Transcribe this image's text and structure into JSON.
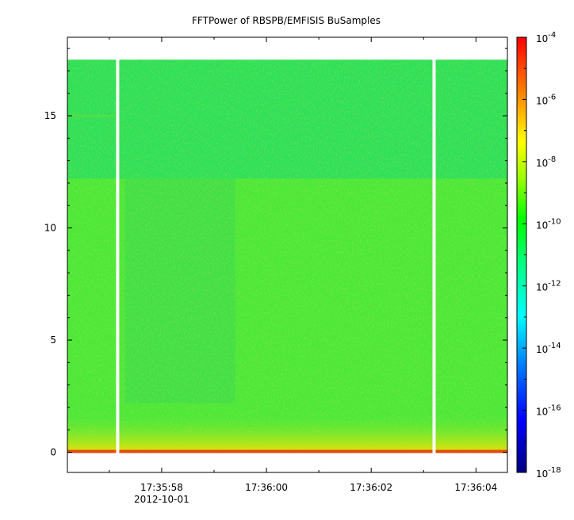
{
  "chart_data": {
    "type": "heatmap",
    "title": "FFTPower of RBSPB/EMFISIS  BuSamples",
    "xlabel": "",
    "ylabel": "",
    "x_ticks": [
      "17:35:58",
      "17:36:00",
      "17:36:02",
      "17:36:04"
    ],
    "x_date_label": "2012-10-01",
    "y_ticks": [
      0,
      5,
      10,
      15
    ],
    "ylim": [
      -0.9,
      18.5
    ],
    "data_ymax": 17.5,
    "xlim_seconds": [
      56.2,
      64.6
    ],
    "data_gaps_seconds": [
      57.16,
      63.2
    ],
    "colorbar": {
      "scale": "log",
      "range": [
        1e-18,
        0.0001
      ],
      "tick_exponents": [
        -4,
        -6,
        -8,
        -10,
        -12,
        -14,
        -16,
        -18
      ],
      "tick_base": "10"
    },
    "colors": {
      "background_field": "#2ee05a",
      "lower_band": "#4be83a",
      "near_zero": "#f5e000",
      "zero_line": "#e24a10"
    }
  }
}
